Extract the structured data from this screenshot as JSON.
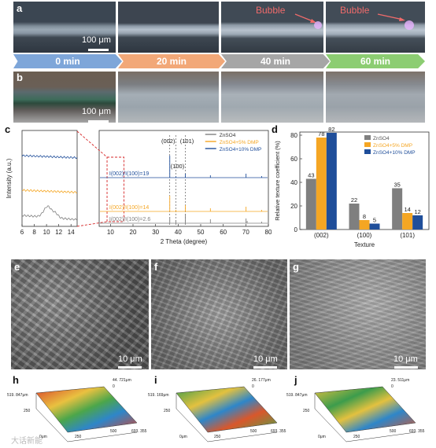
{
  "panels": {
    "a": {
      "letter": "a",
      "scalebar": "100 μm",
      "bubble_labels": [
        "Bubble",
        "Bubble"
      ]
    },
    "b": {
      "letter": "b",
      "scalebar": "100 μm"
    },
    "c": {
      "letter": "c"
    },
    "d": {
      "letter": "d"
    },
    "e": {
      "letter": "e",
      "scalebar": "10 μm"
    },
    "f": {
      "letter": "f",
      "scalebar": "10 μm"
    },
    "g": {
      "letter": "g",
      "scalebar": "10 μm"
    },
    "h": {
      "letter": "h",
      "top_value": "44. 721μm",
      "y_max": "519. 847μm",
      "y_mid": "250",
      "x_mid": "250",
      "x_500": "500",
      "x_max": "693. 355",
      "zero": "0",
      "zero_um": "0μm",
      "origin_zero": "0"
    },
    "i": {
      "letter": "i",
      "top_value": "26. 177μm",
      "y_max": "519. 169μm",
      "y_mid": "250",
      "x_mid": "250",
      "x_500": "500",
      "x_max": "693. 355",
      "zero": "0",
      "zero_um": "0μm"
    },
    "j": {
      "letter": "j",
      "top_value": "23. 511μm",
      "y_max": "519. 847μm",
      "y_mid": "250",
      "x_mid": "250",
      "x_500": "500",
      "x_max": "693. 355",
      "zero": "0",
      "zero_um": "0μm"
    }
  },
  "timeline": [
    "0 min",
    "20 min",
    "40 min",
    "60 min"
  ],
  "watermark": "大话新能",
  "colors": {
    "zn": "#7f7f7f",
    "dmp5": "#f5a623",
    "dmp10": "#1f4e9a",
    "arrow0": "#7ea6d9",
    "arrow20": "#f2a878",
    "arrow40": "#a6a6a6",
    "arrow60": "#8ccd72",
    "dashed_red": "#d62728"
  },
  "chart_data": [
    {
      "type": "line",
      "title": "",
      "xlabel": "2 Theta (degree)",
      "ylabel": "Intensity (a.u.)",
      "inset": {
        "xlim": [
          6,
          15
        ],
        "xticks": [
          6,
          8,
          10,
          12,
          14
        ]
      },
      "xlim": [
        5,
        80
      ],
      "xticks": [
        10,
        20,
        30,
        40,
        50,
        60,
        70,
        80
      ],
      "legend": [
        "ZnSO4",
        "ZnSO4+5% DMP",
        "ZnSO4+10% DMP"
      ],
      "peak_labels": [
        "(002)",
        "(100)",
        "(101)"
      ],
      "peak_positions": [
        36.3,
        39.0,
        43.2
      ],
      "annotations": [
        "I(002)/I(100)=19",
        "I(002)/I(100)=14",
        "I(002)/I(100)=2.6"
      ]
    },
    {
      "type": "bar",
      "title": "",
      "xlabel": "Texture",
      "ylabel": "Relative texture coefficient (%)",
      "ylim": [
        0,
        80
      ],
      "yticks": [
        0,
        20,
        40,
        60,
        80
      ],
      "categories": [
        "(002)",
        "(100)",
        "(101)"
      ],
      "legend_position": "top-right",
      "series": [
        {
          "name": "ZnSO4",
          "values": [
            43,
            22,
            35
          ]
        },
        {
          "name": "ZnSO4+5% DMP",
          "values": [
            78,
            8,
            14
          ]
        },
        {
          "name": "ZnSO4+10% DMP",
          "values": [
            82,
            5,
            12
          ]
        }
      ]
    }
  ]
}
